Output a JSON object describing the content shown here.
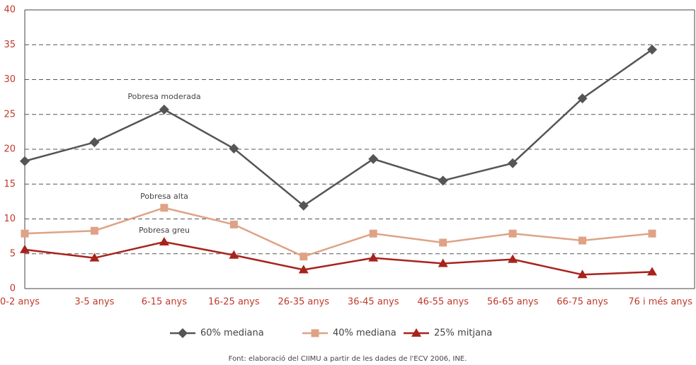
{
  "chart_data": {
    "type": "line",
    "categories": [
      "0-2 anys",
      "3-5 anys",
      "6-15 anys",
      "16-25 anys",
      "26-35 anys",
      "36-45 anys",
      "46-55 anys",
      "56-65 anys",
      "66-75 anys",
      "76 i més anys"
    ],
    "series": [
      {
        "name": "60% mediana",
        "color": "#555555",
        "marker": "diamond",
        "values": [
          18.3,
          21.0,
          25.7,
          20.1,
          11.9,
          18.6,
          15.5,
          18.0,
          27.3,
          34.3
        ]
      },
      {
        "name": "40% mediana",
        "color": "#dfa285",
        "marker": "square",
        "values": [
          7.9,
          8.3,
          11.6,
          9.2,
          4.6,
          7.9,
          6.6,
          7.9,
          6.9,
          7.9
        ]
      },
      {
        "name": "25% mitjana",
        "color": "#a8231c",
        "marker": "triangle",
        "values": [
          5.6,
          4.4,
          6.7,
          4.8,
          2.7,
          4.4,
          3.6,
          4.2,
          2.0,
          2.4
        ]
      }
    ],
    "annotations": [
      "Pobresa moderada",
      "Pobresa alta",
      "Pobresa greu"
    ],
    "source": "Font: elaboració del CIIMU a partir de les dades de l'ECV 2006, INE.",
    "ylim": [
      0,
      40
    ],
    "yticks": [
      0,
      5,
      10,
      15,
      20,
      25,
      30,
      35,
      40
    ],
    "grid": true,
    "legend": "bottom"
  }
}
